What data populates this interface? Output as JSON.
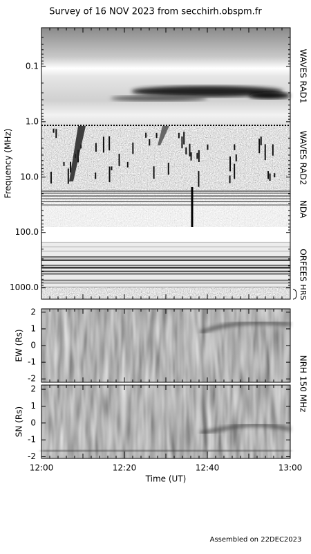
{
  "title": "Survey of 16 NOV 2023 from secchirh.obspm.fr",
  "footer": "Assembled on 22DEC2023",
  "chart_data": [
    {
      "type": "spectrogram",
      "ylabel": "Frequency (MHz)",
      "log_y": true,
      "y_inverted": true,
      "ylim": [
        0.02,
        1600
      ],
      "yticks": [
        0.1,
        {
          "value": 1,
          "label": "1.0"
        },
        {
          "value": 10,
          "label": "10.0"
        },
        {
          "value": 100,
          "label": "100.0"
        },
        {
          "value": 1000,
          "label": "1000.0"
        }
      ],
      "instruments": [
        "WAVES RAD1",
        "WAVES RAD2",
        "NDA",
        "ORFEES",
        "HRS"
      ],
      "xlim": [
        "12:00",
        "13:00"
      ]
    },
    {
      "type": "image",
      "ylabel": "EW (Rs)",
      "ylim": [
        -2.2,
        2.2
      ],
      "yticks": [
        -2,
        -1,
        0,
        1,
        2
      ],
      "annotation": "NRH 150 MHz",
      "xlim": [
        "12:00",
        "13:00"
      ]
    },
    {
      "type": "image",
      "ylabel": "SN (Rs)",
      "ylim": [
        -2.1,
        2.25
      ],
      "yticks": [
        -2,
        -1,
        0,
        1,
        2
      ],
      "xlabel": "Time (UT)",
      "xticks": [
        "12:00",
        "12:20",
        "12:40",
        "13:00"
      ],
      "xlim": [
        "12:00",
        "13:00"
      ]
    }
  ]
}
